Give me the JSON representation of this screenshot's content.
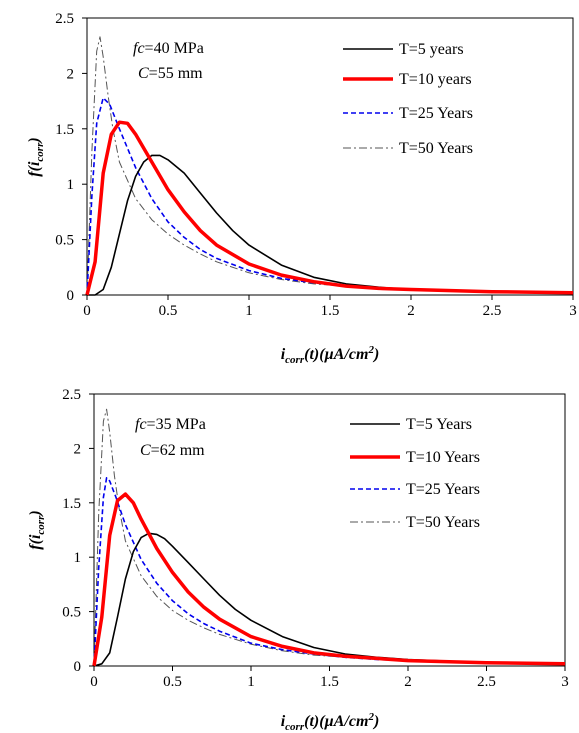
{
  "chart_data": [
    {
      "type": "line",
      "xlabel": {
        "main": "i",
        "sub": "corr",
        "rest": "(t)(µA/cm",
        "sup": "2",
        "end": ")"
      },
      "ylabel": {
        "main": "f(i",
        "sub": "corr",
        "end": ")"
      },
      "annotation": {
        "fc_label": "fc",
        "fc_value": "=40 MPa",
        "c_label": "C",
        "c_value": "=55 mm"
      },
      "xlim": [
        0,
        3
      ],
      "ylim": [
        0,
        2.5
      ],
      "xticks": [
        "0",
        "0.5",
        "1",
        "1.5",
        "2",
        "2.5",
        "3"
      ],
      "yticks": [
        "0",
        "0.5",
        "1",
        "1.5",
        "2",
        "2.5"
      ],
      "grid": false,
      "legend_position": "top-right",
      "series": [
        {
          "name": "T=5 years",
          "color": "#000000",
          "dash": "solid",
          "width": 1.6,
          "x": [
            0,
            0.05,
            0.1,
            0.15,
            0.2,
            0.25,
            0.3,
            0.35,
            0.4,
            0.45,
            0.5,
            0.6,
            0.7,
            0.8,
            0.9,
            1.0,
            1.2,
            1.4,
            1.6,
            1.8,
            2.0,
            2.5,
            3.0
          ],
          "y": [
            0,
            0,
            0.05,
            0.25,
            0.55,
            0.85,
            1.07,
            1.2,
            1.26,
            1.26,
            1.22,
            1.1,
            0.92,
            0.74,
            0.58,
            0.45,
            0.27,
            0.16,
            0.1,
            0.07,
            0.05,
            0.03,
            0.02
          ]
        },
        {
          "name": "T=10 years",
          "color": "#ff0000",
          "dash": "solid",
          "width": 3.5,
          "x": [
            0,
            0.05,
            0.1,
            0.15,
            0.2,
            0.25,
            0.3,
            0.4,
            0.5,
            0.6,
            0.7,
            0.8,
            1.0,
            1.2,
            1.4,
            1.6,
            1.8,
            2.0,
            2.5,
            3.0
          ],
          "y": [
            0,
            0.3,
            1.1,
            1.45,
            1.56,
            1.55,
            1.45,
            1.2,
            0.95,
            0.75,
            0.58,
            0.45,
            0.28,
            0.18,
            0.12,
            0.08,
            0.06,
            0.05,
            0.03,
            0.02
          ]
        },
        {
          "name": "T=25 Years",
          "color": "#0000ee",
          "dash": "dash",
          "width": 1.6,
          "x": [
            0,
            0.03,
            0.06,
            0.1,
            0.14,
            0.2,
            0.3,
            0.4,
            0.5,
            0.6,
            0.7,
            0.8,
            1.0,
            1.2,
            1.4,
            1.6,
            1.8,
            2.0,
            2.5,
            3.0
          ],
          "y": [
            0,
            0.9,
            1.55,
            1.78,
            1.72,
            1.5,
            1.15,
            0.87,
            0.66,
            0.52,
            0.41,
            0.33,
            0.22,
            0.15,
            0.11,
            0.08,
            0.06,
            0.05,
            0.03,
            0.02
          ]
        },
        {
          "name": "T=50 Years",
          "color": "#555555",
          "dash": "dashdot",
          "width": 1.0,
          "x": [
            0,
            0.03,
            0.06,
            0.08,
            0.1,
            0.13,
            0.16,
            0.2,
            0.3,
            0.4,
            0.5,
            0.6,
            0.7,
            0.8,
            1.0,
            1.2,
            1.4,
            1.6,
            1.8,
            2.0,
            2.5,
            3.0
          ],
          "y": [
            0,
            1.3,
            2.2,
            2.33,
            2.15,
            1.8,
            1.5,
            1.2,
            0.87,
            0.68,
            0.55,
            0.45,
            0.37,
            0.3,
            0.2,
            0.14,
            0.1,
            0.08,
            0.06,
            0.05,
            0.03,
            0.02
          ]
        }
      ]
    },
    {
      "type": "line",
      "xlabel": {
        "main": "i",
        "sub": "corr",
        "rest": "(t)(µA/cm",
        "sup": "2",
        "end": ")"
      },
      "ylabel": {
        "main": "f(i",
        "sub": "corr",
        "end": ")"
      },
      "annotation": {
        "fc_label": "fc",
        "fc_value": "=35 MPa",
        "c_label": "C",
        "c_value": "=62 mm"
      },
      "xlim": [
        0,
        3
      ],
      "ylim": [
        0,
        2.5
      ],
      "xticks": [
        "0",
        "0.5",
        "1",
        "1.5",
        "2",
        "2.5",
        "3"
      ],
      "yticks": [
        "0",
        "0.5",
        "1",
        "1.5",
        "2",
        "2.5"
      ],
      "grid": false,
      "legend_position": "top-right",
      "series": [
        {
          "name": "T=5 Years",
          "color": "#000000",
          "dash": "solid",
          "width": 1.6,
          "x": [
            0,
            0.05,
            0.1,
            0.15,
            0.2,
            0.25,
            0.3,
            0.35,
            0.4,
            0.45,
            0.5,
            0.6,
            0.7,
            0.8,
            0.9,
            1.0,
            1.2,
            1.4,
            1.6,
            1.8,
            2.0,
            2.5,
            3.0
          ],
          "y": [
            0,
            0.02,
            0.12,
            0.45,
            0.8,
            1.05,
            1.18,
            1.22,
            1.21,
            1.17,
            1.1,
            0.95,
            0.8,
            0.65,
            0.52,
            0.42,
            0.27,
            0.17,
            0.11,
            0.08,
            0.06,
            0.03,
            0.02
          ]
        },
        {
          "name": "T=10 Years",
          "color": "#ff0000",
          "dash": "solid",
          "width": 3.5,
          "x": [
            0,
            0.05,
            0.1,
            0.15,
            0.2,
            0.25,
            0.3,
            0.4,
            0.5,
            0.6,
            0.7,
            0.8,
            1.0,
            1.2,
            1.4,
            1.6,
            1.8,
            2.0,
            2.5,
            3.0
          ],
          "y": [
            0,
            0.45,
            1.2,
            1.52,
            1.58,
            1.5,
            1.35,
            1.08,
            0.86,
            0.68,
            0.54,
            0.43,
            0.27,
            0.18,
            0.12,
            0.09,
            0.07,
            0.05,
            0.03,
            0.02
          ]
        },
        {
          "name": "T=25 Years",
          "color": "#0000ee",
          "dash": "dash",
          "width": 1.6,
          "x": [
            0,
            0.03,
            0.06,
            0.08,
            0.1,
            0.14,
            0.2,
            0.3,
            0.4,
            0.5,
            0.6,
            0.7,
            0.8,
            1.0,
            1.2,
            1.4,
            1.6,
            1.8,
            2.0,
            2.5,
            3.0
          ],
          "y": [
            0,
            0.9,
            1.55,
            1.73,
            1.7,
            1.55,
            1.3,
            0.98,
            0.76,
            0.6,
            0.48,
            0.39,
            0.32,
            0.21,
            0.15,
            0.11,
            0.08,
            0.06,
            0.05,
            0.03,
            0.02
          ]
        },
        {
          "name": "T=50 Years",
          "color": "#555555",
          "dash": "dashdot",
          "width": 1.0,
          "x": [
            0,
            0.03,
            0.06,
            0.08,
            0.1,
            0.13,
            0.16,
            0.2,
            0.3,
            0.4,
            0.5,
            0.6,
            0.7,
            0.8,
            1.0,
            1.2,
            1.4,
            1.6,
            1.8,
            2.0,
            2.5,
            3.0
          ],
          "y": [
            0,
            1.4,
            2.25,
            2.36,
            2.15,
            1.75,
            1.45,
            1.15,
            0.83,
            0.64,
            0.51,
            0.42,
            0.35,
            0.29,
            0.2,
            0.14,
            0.1,
            0.08,
            0.06,
            0.05,
            0.03,
            0.02
          ]
        }
      ]
    }
  ]
}
